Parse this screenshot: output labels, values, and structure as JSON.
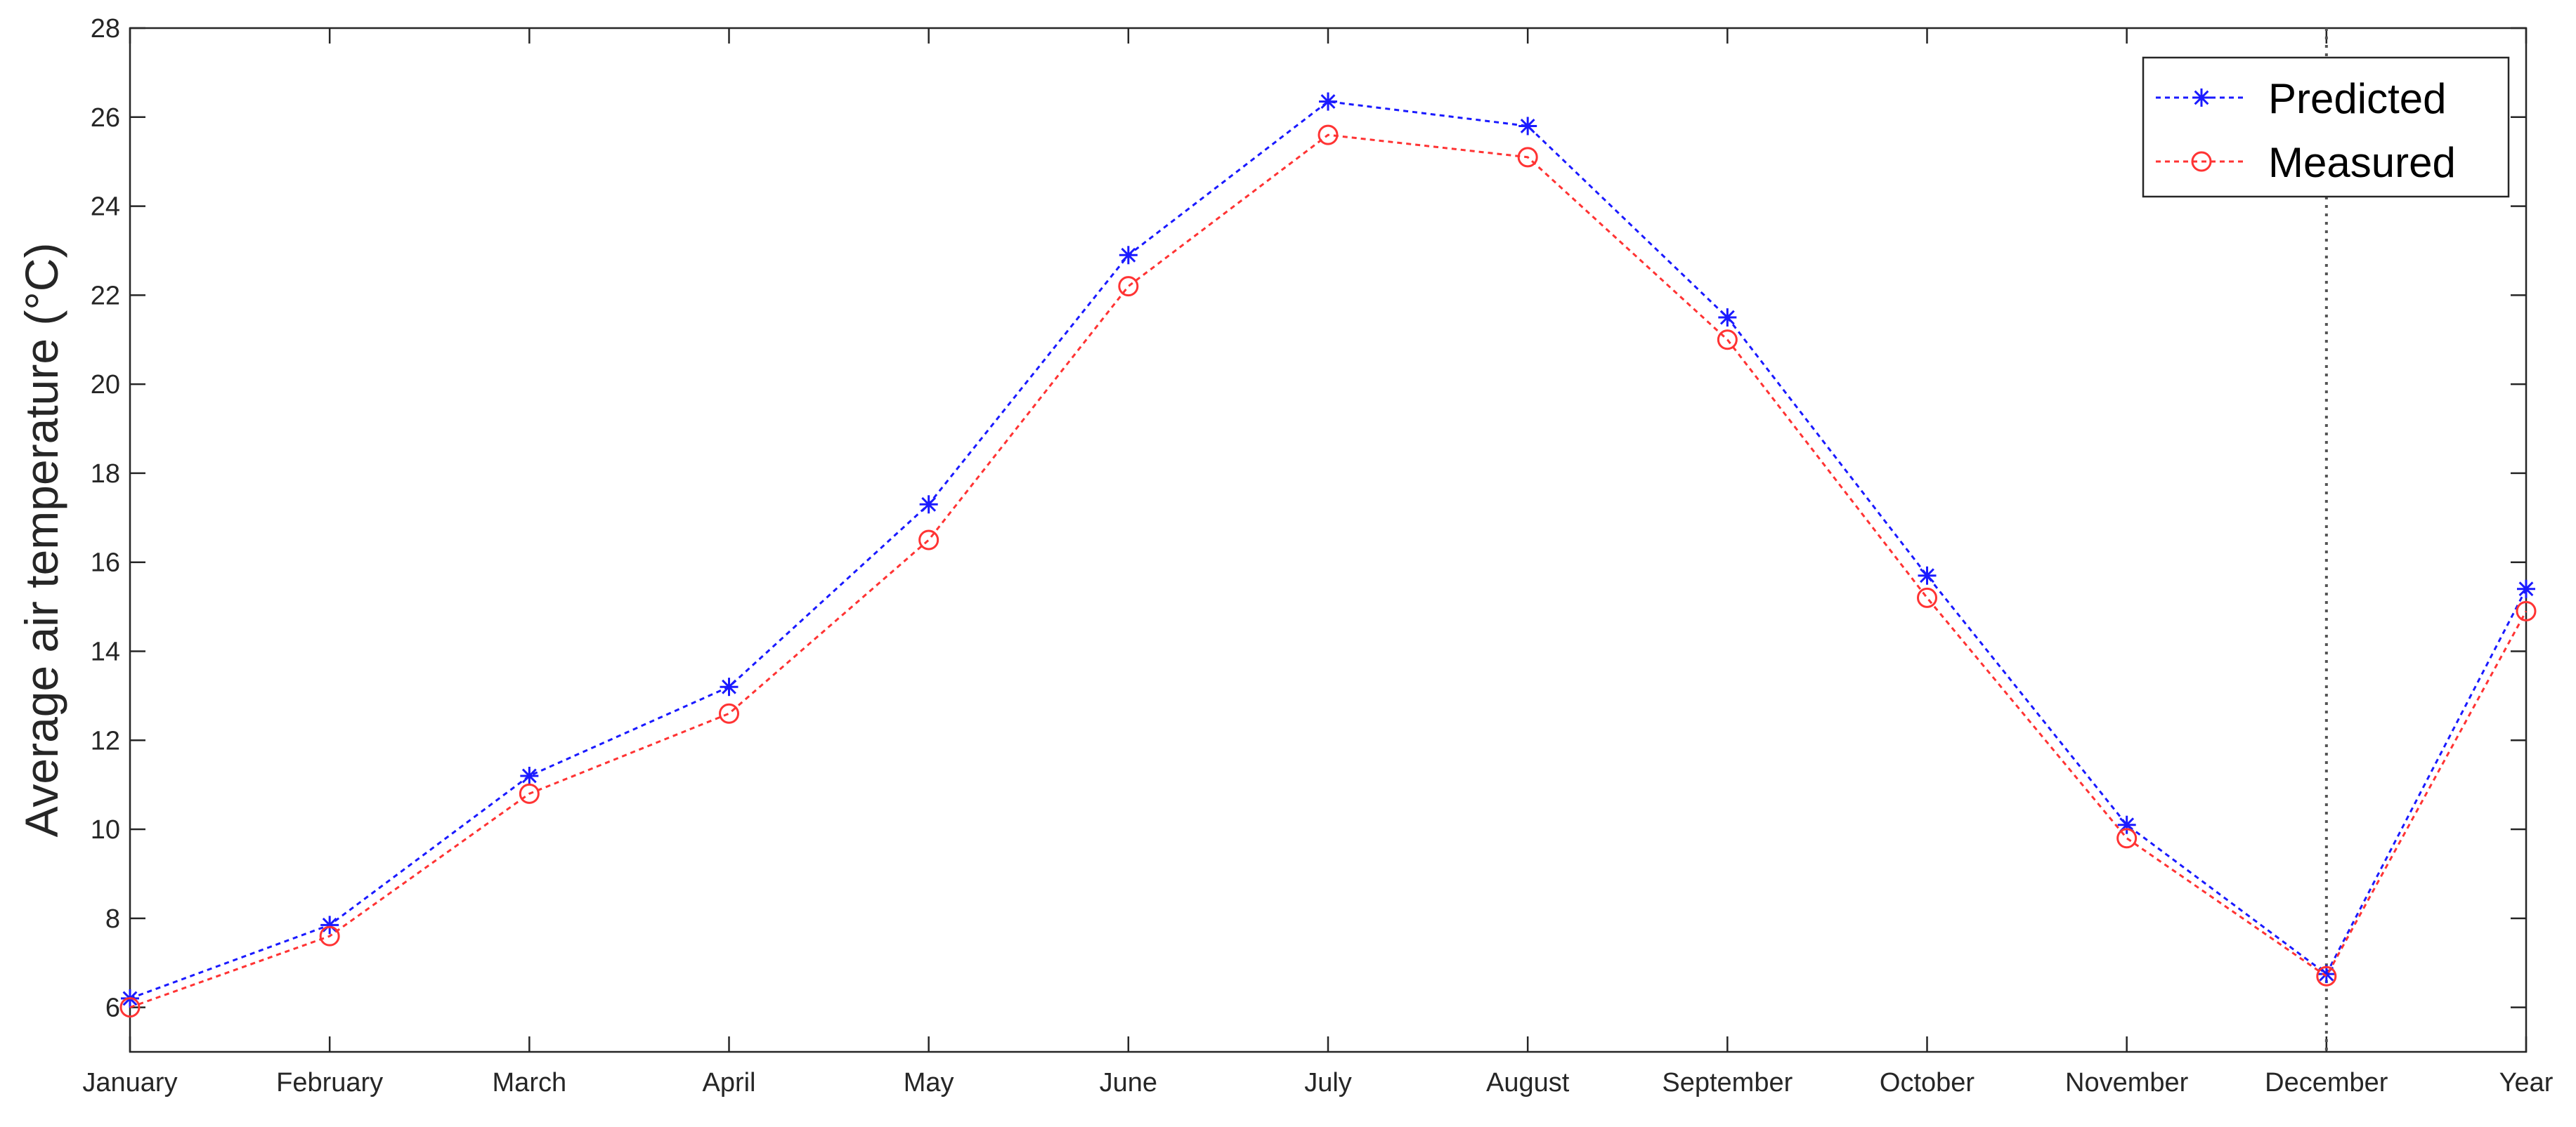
{
  "chart_data": {
    "type": "line",
    "title": "",
    "xlabel": "",
    "ylabel": "Average air temperature (°C)",
    "categories": [
      "January",
      "February",
      "March",
      "April",
      "May",
      "June",
      "July",
      "August",
      "September",
      "October",
      "November",
      "December",
      "Year"
    ],
    "ylim": [
      5,
      28
    ],
    "yticks": [
      "6",
      "8",
      "10",
      "12",
      "14",
      "16",
      "18",
      "20",
      "22",
      "24",
      "26",
      "28"
    ],
    "grid": false,
    "legend_position": "top-right",
    "reference_line": {
      "category": "December",
      "style": "dotted",
      "color": "#555555"
    },
    "series": [
      {
        "name": "Predicted",
        "color": "#1a1aff",
        "marker": "asterisk",
        "line_style": "dotted",
        "values": [
          6.2,
          7.85,
          11.2,
          13.2,
          17.3,
          22.9,
          26.35,
          25.8,
          21.5,
          15.7,
          10.1,
          6.75,
          15.4
        ]
      },
      {
        "name": "Measured",
        "color": "#ff3333",
        "marker": "circle",
        "line_style": "dotted",
        "values": [
          6.0,
          7.6,
          10.8,
          12.6,
          16.5,
          22.2,
          25.6,
          25.1,
          21.0,
          15.2,
          9.8,
          6.7,
          14.9
        ]
      }
    ]
  }
}
